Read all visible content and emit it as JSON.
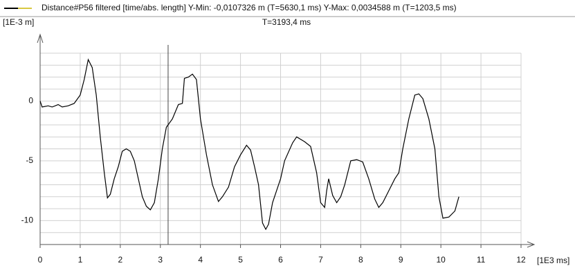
{
  "chart_data": {
    "type": "line",
    "title": "Distance#P56 filtered [time/abs. length] Y-Min: -0,0107326 m (T=5630,1 ms) Y-Max: 0,0034588 m (T=1203,5 ms)",
    "y_unit": "[1E-3 m]",
    "x_unit": "[1E3 ms]",
    "cursor": {
      "label": "T=3193,4 ms",
      "x": 3.1934
    },
    "xlim": [
      0,
      12
    ],
    "ylim": [
      -12,
      4
    ],
    "xticks": [
      0,
      1,
      2,
      3,
      4,
      5,
      6,
      7,
      8,
      9,
      10,
      11,
      12
    ],
    "yticks": [
      -10,
      -5,
      0
    ],
    "ygrid": [
      -12,
      -11,
      -10,
      -9,
      -8,
      -7,
      -6,
      -5,
      -4,
      -3,
      -2,
      -1,
      0,
      1,
      2,
      3,
      4
    ],
    "grid": true,
    "series": [
      {
        "name": "Distance#P56 filtered",
        "color": "#000000",
        "x": [
          0,
          0.05,
          0.2,
          0.3,
          0.45,
          0.55,
          0.7,
          0.85,
          1.0,
          1.1,
          1.2,
          1.3,
          1.4,
          1.5,
          1.6,
          1.68,
          1.75,
          1.85,
          1.95,
          2.05,
          2.15,
          2.25,
          2.35,
          2.45,
          2.55,
          2.65,
          2.75,
          2.85,
          2.95,
          3.05,
          3.15,
          3.3,
          3.45,
          3.55,
          3.6,
          3.7,
          3.8,
          3.9,
          4.0,
          4.15,
          4.3,
          4.45,
          4.55,
          4.7,
          4.85,
          5.0,
          5.15,
          5.25,
          5.35,
          5.45,
          5.55,
          5.63,
          5.7,
          5.8,
          5.9,
          6.0,
          6.1,
          6.3,
          6.4,
          6.6,
          6.75,
          6.9,
          7.0,
          7.1,
          7.15,
          7.2,
          7.3,
          7.4,
          7.5,
          7.6,
          7.75,
          7.9,
          8.05,
          8.2,
          8.35,
          8.45,
          8.55,
          8.7,
          8.85,
          8.95,
          9.05,
          9.2,
          9.35,
          9.45,
          9.55,
          9.7,
          9.85,
          9.95,
          10.05,
          10.2,
          10.35,
          10.45
        ],
        "values": [
          0,
          -0.5,
          -0.4,
          -0.5,
          -0.3,
          -0.5,
          -0.4,
          -0.2,
          0.5,
          1.8,
          3.46,
          2.8,
          0.5,
          -3,
          -6,
          -8.1,
          -7.8,
          -6.5,
          -5.5,
          -4.2,
          -4.0,
          -4.2,
          -5,
          -6.5,
          -8,
          -8.8,
          -9.1,
          -8.5,
          -6.5,
          -4,
          -2.2,
          -1.5,
          -0.3,
          -0.2,
          1.9,
          2.0,
          2.25,
          1.8,
          -1.5,
          -4.5,
          -7,
          -8.4,
          -8,
          -7.2,
          -5.5,
          -4.5,
          -3.7,
          -4.1,
          -5.5,
          -7,
          -10.2,
          -10.73,
          -10.3,
          -8.5,
          -7.5,
          -6.5,
          -5,
          -3.5,
          -3,
          -3.4,
          -3.8,
          -6,
          -8.5,
          -8.9,
          -7.5,
          -6.5,
          -7.9,
          -8.5,
          -8,
          -7,
          -5,
          -4.9,
          -5.1,
          -6.5,
          -8.2,
          -8.9,
          -8.5,
          -7.5,
          -6.5,
          -6.0,
          -4,
          -1.5,
          0.5,
          0.6,
          0.2,
          -1.5,
          -4,
          -8,
          -9.8,
          -9.7,
          -9.2,
          -8.0
        ]
      }
    ]
  }
}
